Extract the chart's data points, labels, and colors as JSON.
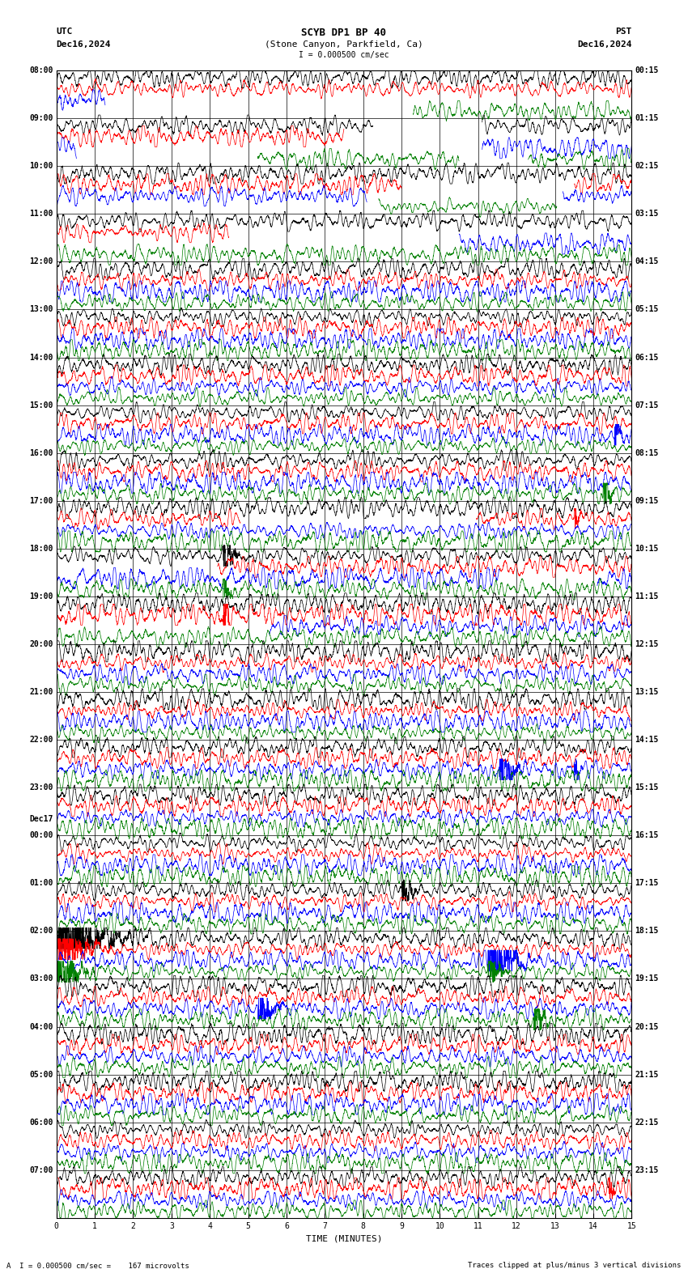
{
  "title_line1": "SCYB DP1 BP 40",
  "title_line2": "(Stone Canyon, Parkfield, Ca)",
  "scale_label": "I = 0.000500 cm/sec",
  "utc_label": "UTC",
  "utc_date": "Dec16,2024",
  "pst_label": "PST",
  "pst_date": "Dec16,2024",
  "bottom_label": "A  I = 0.000500 cm/sec =    167 microvolts",
  "bottom_right": "Traces clipped at plus/minus 3 vertical divisions",
  "xlabel": "TIME (MINUTES)",
  "xticks": [
    0,
    1,
    2,
    3,
    4,
    5,
    6,
    7,
    8,
    9,
    10,
    11,
    12,
    13,
    14,
    15
  ],
  "time_minutes": 15,
  "left_times_utc": [
    "08:00",
    "09:00",
    "10:00",
    "11:00",
    "12:00",
    "13:00",
    "14:00",
    "15:00",
    "16:00",
    "17:00",
    "18:00",
    "19:00",
    "20:00",
    "21:00",
    "22:00",
    "23:00",
    "00:00",
    "01:00",
    "02:00",
    "03:00",
    "04:00",
    "05:00",
    "06:00",
    "07:00"
  ],
  "right_times_pst": [
    "00:15",
    "01:15",
    "02:15",
    "03:15",
    "04:15",
    "05:15",
    "06:15",
    "07:15",
    "08:15",
    "09:15",
    "10:15",
    "11:15",
    "12:15",
    "13:15",
    "14:15",
    "15:15",
    "16:15",
    "17:15",
    "18:15",
    "19:15",
    "20:15",
    "21:15",
    "22:15",
    "23:15"
  ],
  "dec17_row": 16,
  "n_rows": 24,
  "traces_per_row": 4,
  "colors": [
    "black",
    "red",
    "blue",
    "green"
  ],
  "bg_color": "white",
  "seed": 42
}
